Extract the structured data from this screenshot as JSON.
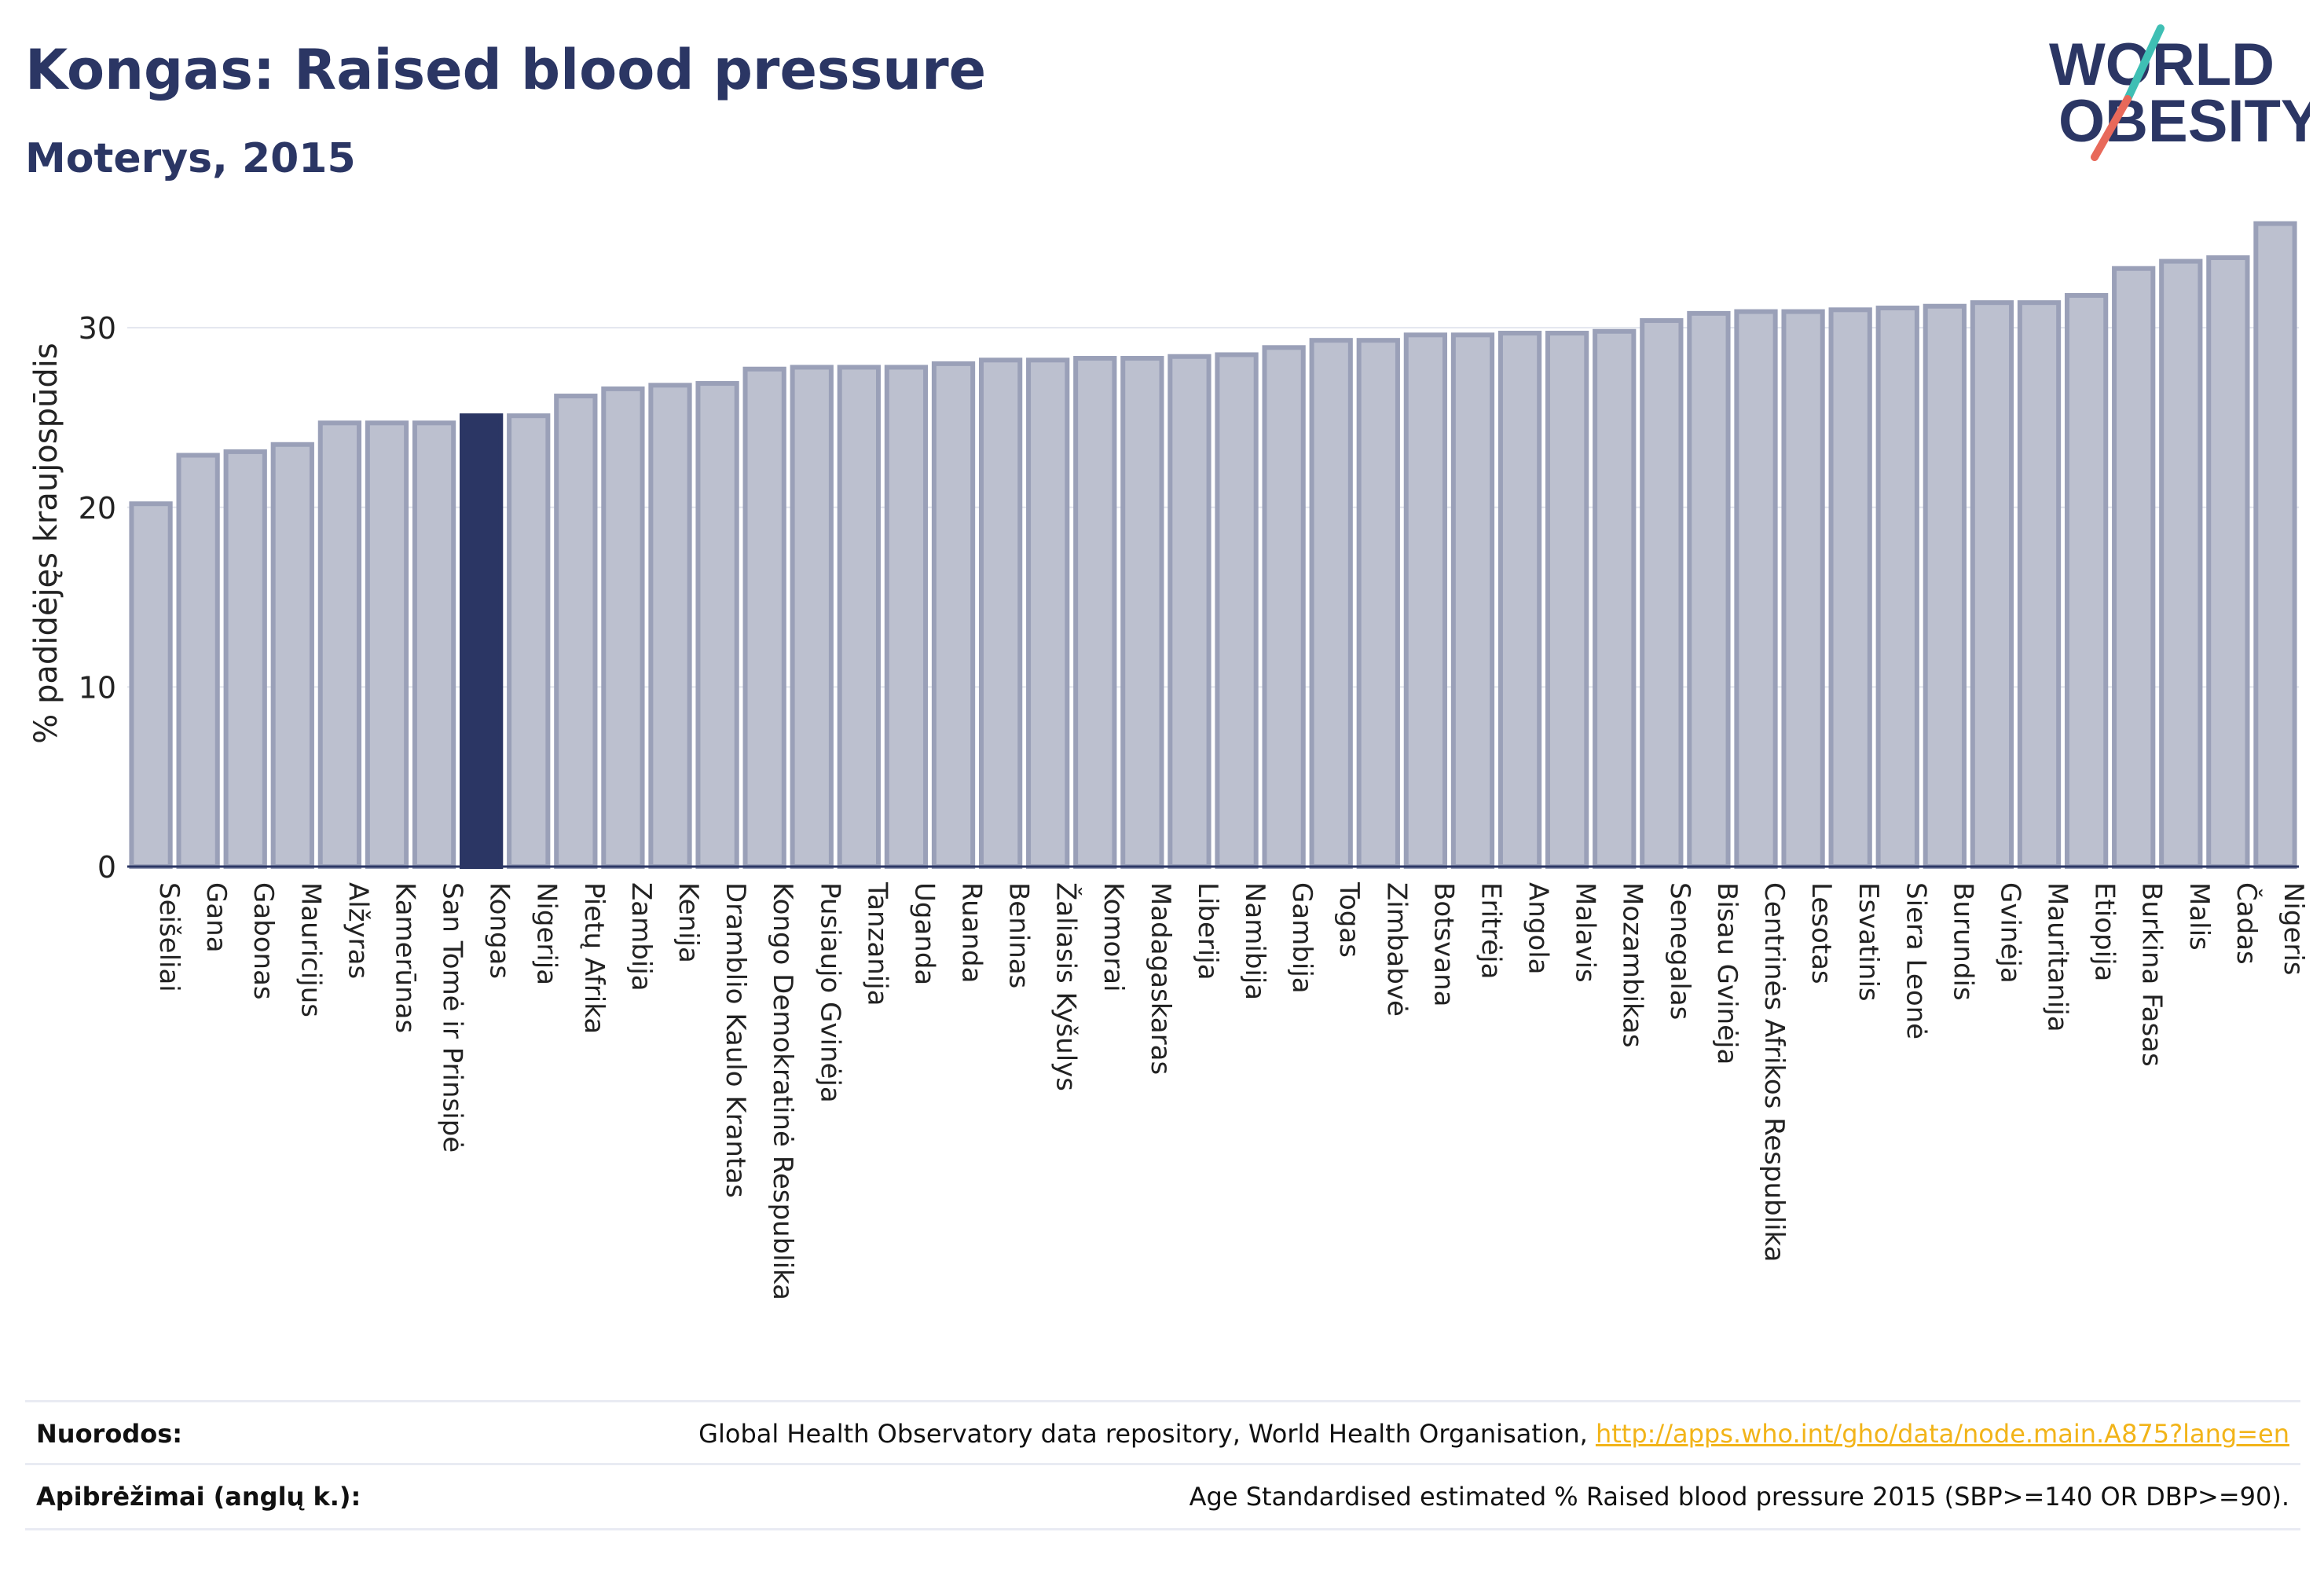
{
  "header": {
    "title": "Kongas: Raised blood pressure",
    "subtitle": "Moterys, 2015"
  },
  "logo": {
    "line1": "WORLD",
    "line2": "OBESITY",
    "slash_colors": [
      "#3fbfb4",
      "#e8695a"
    ]
  },
  "colors": {
    "bar_default": "#bcc0cf",
    "bar_default_stroke": "#9aa0b8",
    "bar_highlight": "#2b3664",
    "axis": "#2b3664",
    "grid": "#e3e6ee"
  },
  "chart_data": {
    "type": "bar",
    "title": "Kongas: Raised blood pressure",
    "subtitle": "Moterys, 2015",
    "xlabel": "",
    "ylabel": "% padidėjęs kraujospūdis",
    "ylim": [
      0,
      36
    ],
    "yticks": [
      0,
      10,
      20,
      30
    ],
    "grid": true,
    "highlight": "Kongas",
    "categories": [
      "Seišeliai",
      "Gana",
      "Gabonas",
      "Mauricijus",
      "Alžyras",
      "Kamerūnas",
      "San Tomė ir Prinsipė",
      "Kongas",
      "Nigerija",
      "Pietų Afrika",
      "Zambija",
      "Kenija",
      "Dramblio Kaulo Krantas",
      "Kongo Demokratinė Respublika",
      "Pusiaujo Gvinėja",
      "Tanzanija",
      "Uganda",
      "Ruanda",
      "Beninas",
      "Žaliasis Kyšulys",
      "Komorai",
      "Madagaskaras",
      "Liberija",
      "Namibija",
      "Gambija",
      "Togas",
      "Zimbabvė",
      "Botsvana",
      "Eritrėja",
      "Angola",
      "Malavis",
      "Mozambikas",
      "Senegalas",
      "Bisau Gvinėja",
      "Centrinės Afrikos Respublika",
      "Lesotas",
      "Esvatinis",
      "Siera Leonė",
      "Burundis",
      "Gvinėja",
      "Mauritanija",
      "Etiopija",
      "Burkina Fasas",
      "Malis",
      "Čadas",
      "Nigeris"
    ],
    "values": [
      20.2,
      22.9,
      23.1,
      23.5,
      24.7,
      24.7,
      24.7,
      25.1,
      25.1,
      26.2,
      26.6,
      26.8,
      26.9,
      27.7,
      27.8,
      27.8,
      27.8,
      28.0,
      28.2,
      28.2,
      28.3,
      28.3,
      28.4,
      28.5,
      28.9,
      29.3,
      29.3,
      29.6,
      29.6,
      29.7,
      29.7,
      29.8,
      30.4,
      30.8,
      30.9,
      30.9,
      31.0,
      31.1,
      31.2,
      31.4,
      31.4,
      31.8,
      33.3,
      33.7,
      33.9,
      35.8
    ]
  },
  "footer": {
    "sources_label": "Nuorodos:",
    "sources_text": "Global Health Observatory data repository, World Health Organisation, ",
    "sources_link": "http://apps.who.int/gho/data/node.main.A875?lang=en",
    "definitions_label": "Apibrėžimai (anglų k.):",
    "definitions_text": "Age Standardised estimated % Raised blood pressure 2015 (SBP>=140 OR DBP>=90)."
  }
}
